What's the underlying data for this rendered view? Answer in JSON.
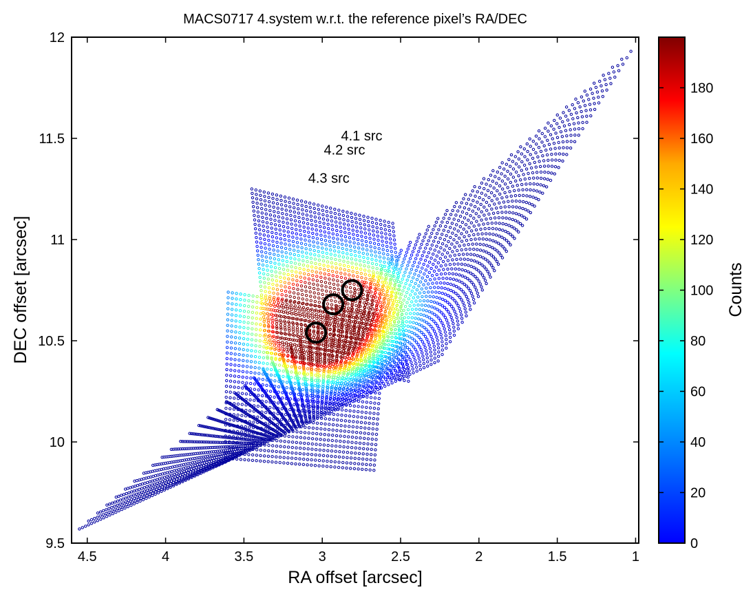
{
  "chart_data": {
    "type": "scatter",
    "title": "MACS0717  4.system w.r.t. the reference pixel’s RA/DEC",
    "xlabel": "RA offset [arcsec]",
    "ylabel": "DEC offset [arcsec]",
    "xlim": [
      4.6,
      0.98
    ],
    "x_reversed": true,
    "ylim": [
      9.5,
      12.0
    ],
    "x_ticks": [
      4.5,
      4,
      3.5,
      3,
      2.5,
      2,
      1.5,
      1
    ],
    "x_tick_labels": [
      "4.5",
      "4",
      "3.5",
      "3",
      "2.5",
      "2",
      "1.5",
      "1"
    ],
    "y_ticks": [
      9.5,
      10,
      10.5,
      11,
      11.5,
      12
    ],
    "y_tick_labels": [
      "9.5",
      "10",
      "10.5",
      "11",
      "11.5",
      "12"
    ],
    "grid": false,
    "colorbar": {
      "label": "Counts",
      "min": 0,
      "max": 200,
      "colormap": "jet",
      "ticks": [
        0,
        20,
        40,
        60,
        80,
        100,
        120,
        140,
        160,
        180
      ],
      "tick_labels": [
        "0",
        "20",
        "40",
        "60",
        "80",
        "100",
        "120",
        "140",
        "160",
        "180"
      ]
    },
    "pixel_grids": [
      {
        "corners": [
          [
            4.55,
            9.57
          ],
          [
            1.03,
            11.93
          ],
          [
            2.26,
            10.4
          ],
          [
            3.62,
            9.9
          ]
        ],
        "nu": 60,
        "nv": 48
      },
      {
        "corners": [
          [
            3.62,
            9.92
          ],
          [
            2.67,
            9.86
          ],
          [
            2.6,
            10.62
          ],
          [
            3.6,
            10.74
          ]
        ],
        "nu": 38,
        "nv": 30
      },
      {
        "corners": [
          [
            3.45,
            11.25
          ],
          [
            2.55,
            11.08
          ],
          [
            2.45,
            10.3
          ],
          [
            3.35,
            10.42
          ]
        ],
        "nu": 34,
        "nv": 38
      }
    ],
    "count_peaks": [
      {
        "ra": 3.02,
        "dec": 10.48,
        "counts": 195,
        "sigma": [
          0.22,
          0.12
        ]
      },
      {
        "ra": 2.86,
        "dec": 10.7,
        "counts": 150,
        "sigma": [
          0.3,
          0.14
        ]
      },
      {
        "ra": 3.1,
        "dec": 10.66,
        "counts": 110,
        "sigma": [
          0.35,
          0.18
        ]
      }
    ],
    "source_circles": [
      {
        "ra": 2.81,
        "dec": 10.75,
        "label": "4.1 src"
      },
      {
        "ra": 2.93,
        "dec": 10.68,
        "label": "4.2 src"
      },
      {
        "ra": 3.04,
        "dec": 10.54,
        "label": "4.3 src"
      }
    ],
    "annotations": [
      {
        "text": "4.1 src",
        "ra": 2.88,
        "dec": 11.49
      },
      {
        "text": "4.2 src",
        "ra": 2.99,
        "dec": 11.42
      },
      {
        "text": "4.3 src",
        "ra": 3.09,
        "dec": 11.28
      }
    ],
    "colors": {
      "marker_edge": "#0000ee",
      "circle": "#000000"
    }
  }
}
